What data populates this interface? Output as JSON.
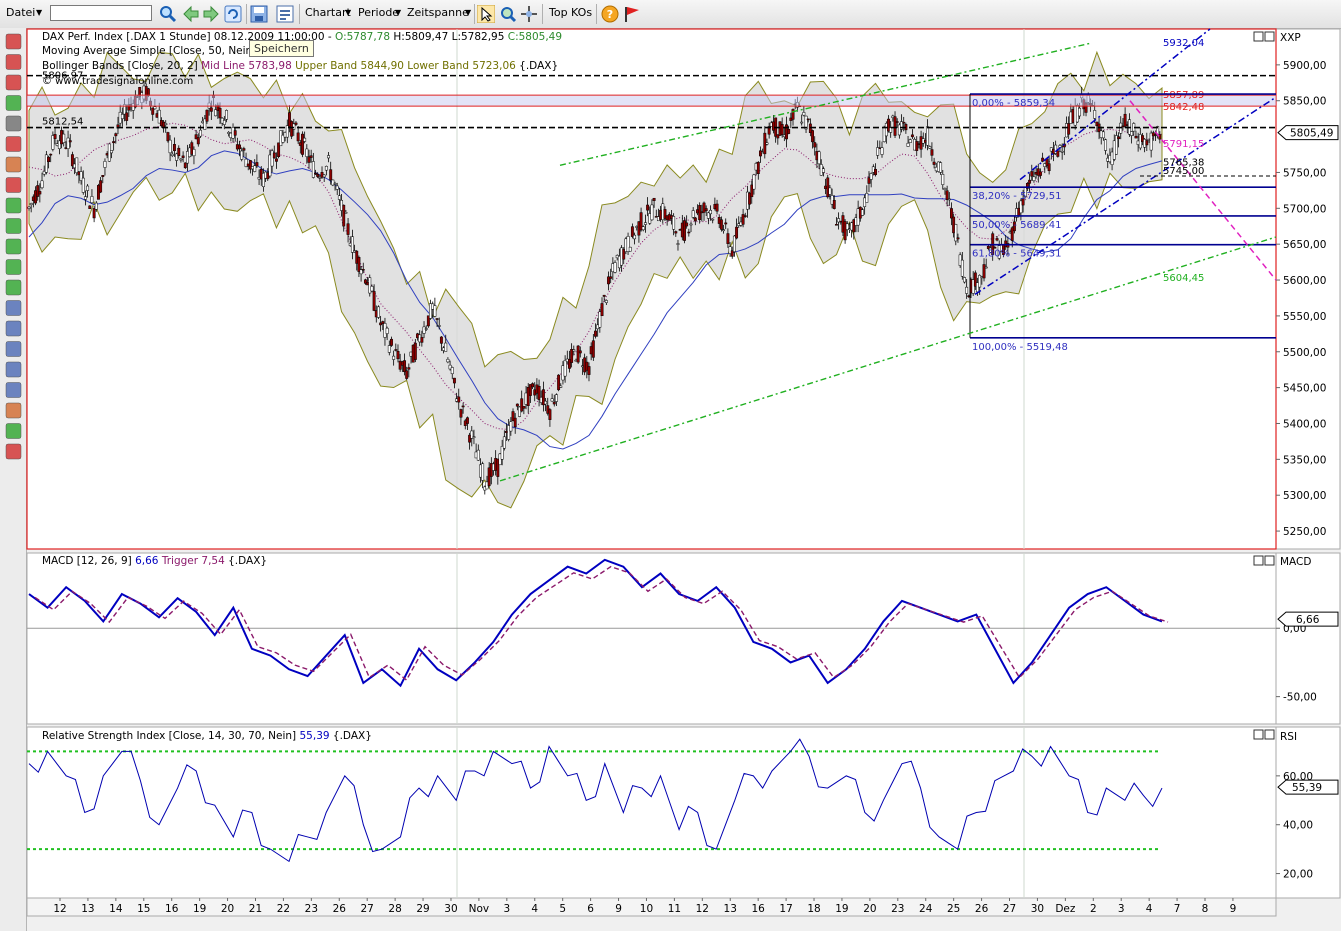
{
  "toolbar": {
    "file_menu": "Datei",
    "search_value": "",
    "charttype_menu": "Chartart",
    "period_menu": "Periode",
    "timespan_menu": "Zeitspanne",
    "topkos_button": "Top KOs"
  },
  "tooltip": "Speichern",
  "main_panel": {
    "header_prefix": "DAX Perf. Index [.DAX  1 Stunde] 08.12.2009 11:00:00 - ",
    "open": "O:5787,78",
    "high": "H:5809,47",
    "low": "L:5782,95",
    "close": "C:5805,49",
    "sma_legend": "Moving Average Simple [Close, 50, Nein] 5",
    "bb_legend_prefix": "Bollinger Bands [Close, 20, 2]",
    "bb_mid": "Mid Line 5783,98",
    "bb_upper": "Upper Band 5844,90",
    "bb_lower": "Lower Band 5723,06",
    "bb_suffix": "{.DAX}",
    "copyright": "© www.tradesignalonline.com",
    "right_label": "XXP",
    "price_badge": "5805,49"
  },
  "annotations": {
    "top_dashed_left": "5806,97",
    "mid_dashed_left": "5812,54",
    "channel_top": "5932,04",
    "red_upper": "5857,89",
    "red_lower": "5842,48",
    "magenta": "5791,15",
    "small_a": "5765,38",
    "small_b": "5745,00",
    "green_channel": "5604,45",
    "fib": [
      {
        "label": "0,00% - 5859,34",
        "value": 5859.34
      },
      {
        "label": "38,20% - 5729,51",
        "value": 5729.51
      },
      {
        "label": "50,00% - 5689,41",
        "value": 5689.41
      },
      {
        "label": "61,80% - 5649,31",
        "value": 5649.31
      },
      {
        "label": "100,00% - 5519,48",
        "value": 5519.48
      }
    ]
  },
  "macd_panel": {
    "legend": "MACD [12, 26, 9]",
    "value": "6,66",
    "trigger": "Trigger 7,54",
    "suffix": "{.DAX}",
    "right_label": "MACD",
    "badge": "6,66",
    "ticks": [
      {
        "v": 0,
        "label": "0,00"
      },
      {
        "v": -50,
        "label": "-50,00"
      }
    ]
  },
  "rsi_panel": {
    "legend": "Relative Strength Index [Close, 14, 30, 70, Nein]",
    "value": "55,39",
    "suffix": "{.DAX}",
    "right_label": "RSI",
    "badge": "55,39",
    "ticks": [
      {
        "v": 60,
        "label": "60,00"
      },
      {
        "v": 40,
        "label": "40,00"
      },
      {
        "v": 20,
        "label": "20,00"
      }
    ]
  },
  "chart_data": {
    "type": "candlestick",
    "y_ticks": [
      {
        "v": 5900,
        "label": "5900,00"
      },
      {
        "v": 5850,
        "label": "5850,00"
      },
      {
        "v": 5750,
        "label": "5750,00"
      },
      {
        "v": 5700,
        "label": "5700,00"
      },
      {
        "v": 5650,
        "label": "5650,00"
      },
      {
        "v": 5600,
        "label": "5600,00"
      },
      {
        "v": 5550,
        "label": "5550,00"
      },
      {
        "v": 5500,
        "label": "5500,00"
      },
      {
        "v": 5450,
        "label": "5450,00"
      },
      {
        "v": 5400,
        "label": "5400,00"
      },
      {
        "v": 5350,
        "label": "5350,00"
      },
      {
        "v": 5300,
        "label": "5300,00"
      },
      {
        "v": 5250,
        "label": "5250,00"
      }
    ],
    "ylim": [
      5225,
      5950
    ],
    "x_labels": [
      "12",
      "13",
      "14",
      "15",
      "16",
      "19",
      "20",
      "21",
      "22",
      "23",
      "26",
      "27",
      "28",
      "29",
      "30",
      "Nov",
      "3",
      "4",
      "5",
      "6",
      "9",
      "10",
      "11",
      "12",
      "13",
      "16",
      "17",
      "18",
      "19",
      "20",
      "23",
      "24",
      "25",
      "26",
      "27",
      "30",
      "Dez",
      "2",
      "3",
      "4",
      "7",
      "8",
      "9"
    ],
    "price_path": [
      5700,
      5740,
      5800,
      5790,
      5740,
      5700,
      5770,
      5820,
      5850,
      5860,
      5830,
      5780,
      5760,
      5800,
      5850,
      5830,
      5790,
      5760,
      5740,
      5780,
      5820,
      5790,
      5750,
      5760,
      5700,
      5640,
      5600,
      5540,
      5500,
      5470,
      5520,
      5560,
      5500,
      5430,
      5380,
      5320,
      5340,
      5400,
      5430,
      5450,
      5420,
      5470,
      5500,
      5480,
      5560,
      5620,
      5650,
      5680,
      5700,
      5690,
      5660,
      5690,
      5700,
      5690,
      5640,
      5700,
      5760,
      5820,
      5800,
      5840,
      5810,
      5750,
      5690,
      5660,
      5700,
      5760,
      5820,
      5810,
      5790,
      5800,
      5750,
      5680,
      5590,
      5600,
      5650,
      5640,
      5700,
      5740,
      5760,
      5780,
      5820,
      5850,
      5830,
      5760,
      5820,
      5800,
      5790,
      5805
    ],
    "macd": [
      25,
      15,
      30,
      20,
      5,
      25,
      18,
      8,
      22,
      12,
      -5,
      15,
      -15,
      -20,
      -30,
      -35,
      -20,
      -5,
      -40,
      -30,
      -42,
      -15,
      -30,
      -38,
      -25,
      -10,
      10,
      25,
      35,
      45,
      40,
      50,
      45,
      30,
      40,
      25,
      20,
      30,
      15,
      -10,
      -15,
      -25,
      -20,
      -40,
      -30,
      -15,
      5,
      20,
      15,
      10,
      5,
      10,
      -15,
      -40,
      -25,
      -5,
      15,
      25,
      30,
      20,
      10,
      5
    ],
    "rsi": [
      65,
      70,
      60,
      45,
      60,
      70,
      58,
      40,
      55,
      62,
      48,
      35,
      45,
      30,
      25,
      35,
      45,
      60,
      40,
      30,
      35,
      55,
      60,
      50,
      62,
      70,
      65,
      55,
      72,
      60,
      50,
      65,
      45,
      55,
      60,
      38,
      45,
      30,
      50,
      60,
      62,
      70,
      68,
      55,
      60,
      45,
      50,
      65,
      55,
      35,
      30,
      45,
      58,
      62,
      68,
      72,
      60,
      45,
      55,
      50,
      52,
      55
    ]
  }
}
